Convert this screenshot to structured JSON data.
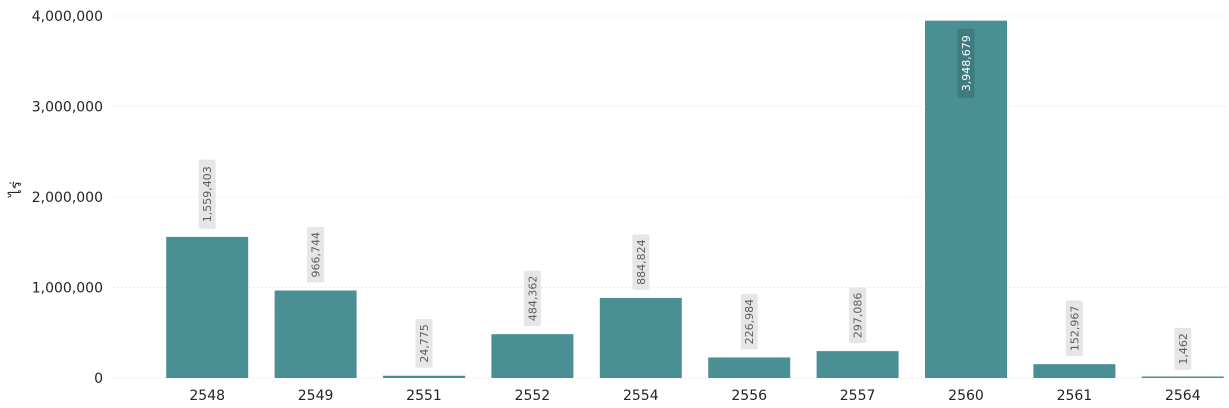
{
  "chart_data": {
    "type": "bar",
    "categories": [
      "2548",
      "2549",
      "2551",
      "2552",
      "2554",
      "2556",
      "2557",
      "2560",
      "2561",
      "2564"
    ],
    "values": [
      1559403,
      966744,
      24775,
      484362,
      884824,
      226984,
      297086,
      3948679,
      152967,
      1462
    ],
    "value_labels": [
      "1,559,403",
      "966,744",
      "24,775",
      "484,362",
      "884,824",
      "226,984",
      "297,086",
      "3,948,679",
      "152,967",
      "1,462"
    ],
    "ylabel": "ไร่",
    "xlabel": "",
    "ylim": [
      0,
      4000000
    ],
    "yticks": [
      0,
      1000000,
      2000000,
      3000000,
      4000000
    ],
    "ytick_labels": [
      "0",
      "1,000,000",
      "2,000,000",
      "3,000,000",
      "4,000,000"
    ],
    "grid": true,
    "legend": "none",
    "colors": {
      "bar": "#4A8F94",
      "grid": "#DADADA",
      "label_bg": "#E6E6E6",
      "label_text": "#605E5C",
      "inside_label_bg": "#3F7C80",
      "axis_text": "#252423"
    }
  }
}
